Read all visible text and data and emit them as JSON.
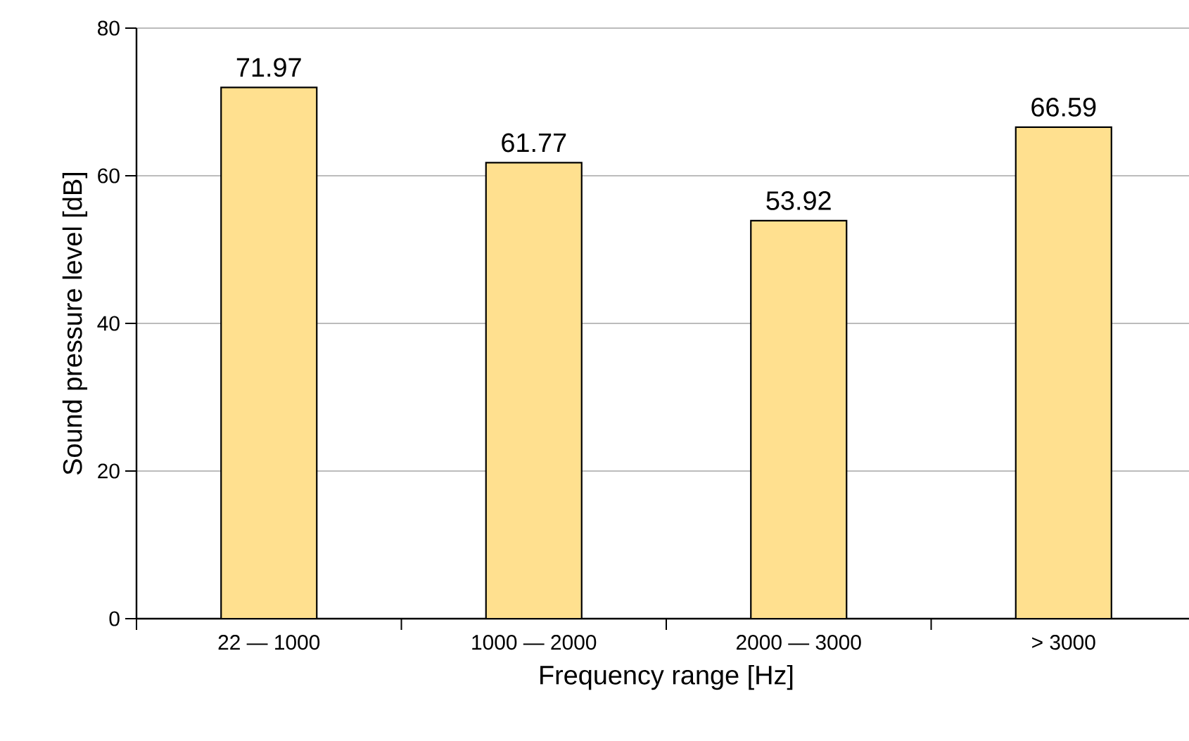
{
  "chart_data": {
    "type": "bar",
    "xlabel": "Frequency range [Hz]",
    "ylabel": "Sound pressure level [dB]",
    "categories": [
      "22 — 1000",
      "1000 — 2000",
      "2000 — 3000",
      "> 3000"
    ],
    "values": [
      71.97,
      61.77,
      53.92,
      66.59
    ],
    "color": "#ffe08f",
    "ylim": [
      0,
      80
    ],
    "yticks": [
      0,
      20,
      40,
      60,
      80
    ],
    "grid": "y",
    "data_labels": true
  }
}
